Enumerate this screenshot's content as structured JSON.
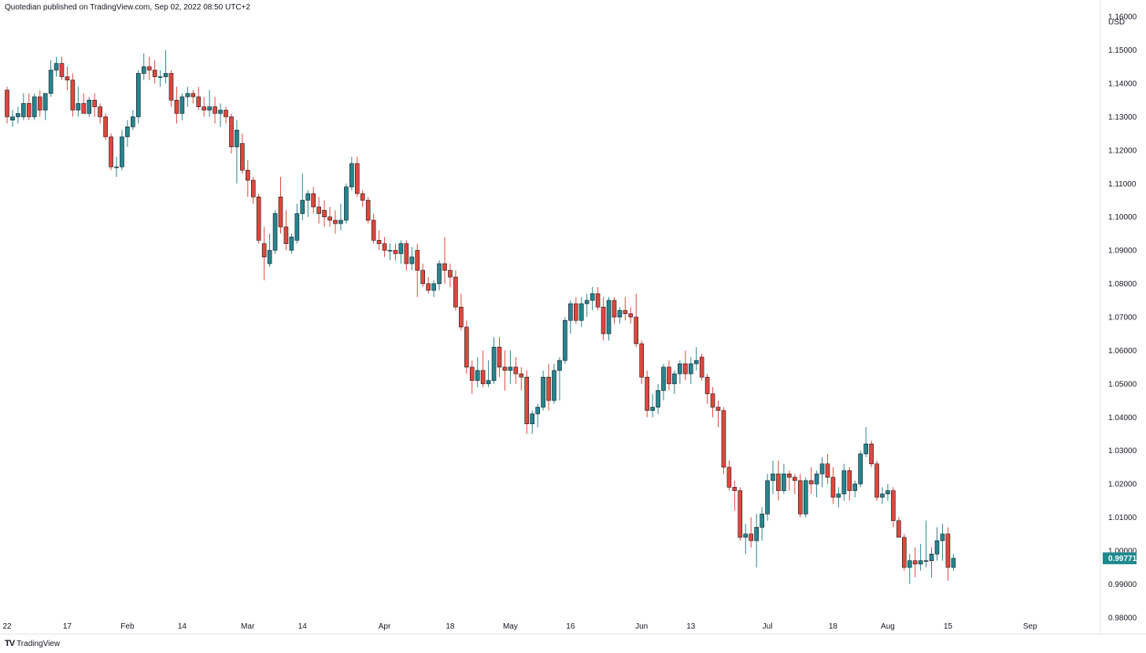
{
  "header": {
    "publisher_line": "Quotedian published on TradingView.com, Sep 02, 2022 08:50 UTC+2"
  },
  "footer": {
    "brand": "TradingView",
    "logo_glyph": "TV"
  },
  "colors": {
    "up": "#26858e",
    "down": "#e0473a",
    "price_tag": "#1d8a8f",
    "axis": "#131722",
    "border": "#e0e3eb"
  },
  "chart_data": {
    "type": "candlestick",
    "currency_label": "USD",
    "ylim": [
      0.975,
      1.165
    ],
    "y_ticks": [
      0.98,
      0.99,
      1.0,
      1.01,
      1.02,
      1.03,
      1.04,
      1.05,
      1.06,
      1.07,
      1.08,
      1.09,
      1.1,
      1.11,
      1.12,
      1.13,
      1.14,
      1.15,
      1.16
    ],
    "y_tick_labels": [
      "0.98000",
      "0.99000",
      "1.00000",
      "1.01000",
      "1.02000",
      "1.03000",
      "1.04000",
      "1.05000",
      "1.06000",
      "1.07000",
      "1.08000",
      "1.09000",
      "1.10000",
      "1.11000",
      "1.12000",
      "1.13000",
      "1.14000",
      "1.15000",
      "1.16000"
    ],
    "x_ticks": [
      {
        "label": "22",
        "index": 0
      },
      {
        "label": "17",
        "index": 11
      },
      {
        "label": "Feb",
        "index": 22
      },
      {
        "label": "14",
        "index": 32
      },
      {
        "label": "Mar",
        "index": 44
      },
      {
        "label": "14",
        "index": 54
      },
      {
        "label": "Apr",
        "index": 69
      },
      {
        "label": "18",
        "index": 81
      },
      {
        "label": "May",
        "index": 92
      },
      {
        "label": "16",
        "index": 103
      },
      {
        "label": "Jun",
        "index": 116
      },
      {
        "label": "13",
        "index": 125
      },
      {
        "label": "Jul",
        "index": 139
      },
      {
        "label": "18",
        "index": 151
      },
      {
        "label": "Aug",
        "index": 161
      },
      {
        "label": "15",
        "index": 172
      },
      {
        "label": "Sep",
        "index": 187
      }
    ],
    "last_price": 0.99771,
    "last_price_label": "0.99771",
    "candles": [
      [
        1.138,
        1.139,
        1.128,
        1.13
      ],
      [
        1.129,
        1.132,
        1.127,
        1.13
      ],
      [
        1.13,
        1.133,
        1.128,
        1.131
      ],
      [
        1.13,
        1.137,
        1.129,
        1.134
      ],
      [
        1.134,
        1.137,
        1.129,
        1.13
      ],
      [
        1.13,
        1.137,
        1.129,
        1.136
      ],
      [
        1.136,
        1.138,
        1.13,
        1.132
      ],
      [
        1.132,
        1.137,
        1.129,
        1.137
      ],
      [
        1.137,
        1.147,
        1.136,
        1.144
      ],
      [
        1.144,
        1.148,
        1.142,
        1.146
      ],
      [
        1.146,
        1.148,
        1.141,
        1.142
      ],
      [
        1.142,
        1.145,
        1.138,
        1.141
      ],
      [
        1.141,
        1.143,
        1.13,
        1.132
      ],
      [
        1.132,
        1.139,
        1.13,
        1.134
      ],
      [
        1.134,
        1.137,
        1.131,
        1.131
      ],
      [
        1.131,
        1.136,
        1.13,
        1.135
      ],
      [
        1.135,
        1.137,
        1.13,
        1.133
      ],
      [
        1.133,
        1.134,
        1.128,
        1.13
      ],
      [
        1.13,
        1.131,
        1.123,
        1.124
      ],
      [
        1.124,
        1.125,
        1.114,
        1.115
      ],
      [
        1.115,
        1.118,
        1.112,
        1.115
      ],
      [
        1.115,
        1.126,
        1.114,
        1.124
      ],
      [
        1.124,
        1.129,
        1.121,
        1.127
      ],
      [
        1.127,
        1.132,
        1.126,
        1.13
      ],
      [
        1.13,
        1.144,
        1.128,
        1.143
      ],
      [
        1.143,
        1.149,
        1.141,
        1.145
      ],
      [
        1.145,
        1.148,
        1.141,
        1.144
      ],
      [
        1.144,
        1.147,
        1.14,
        1.142
      ],
      [
        1.142,
        1.144,
        1.139,
        1.142
      ],
      [
        1.142,
        1.15,
        1.14,
        1.143
      ],
      [
        1.143,
        1.144,
        1.133,
        1.135
      ],
      [
        1.135,
        1.139,
        1.128,
        1.131
      ],
      [
        1.131,
        1.137,
        1.129,
        1.136
      ],
      [
        1.136,
        1.139,
        1.133,
        1.137
      ],
      [
        1.137,
        1.138,
        1.134,
        1.136
      ],
      [
        1.136,
        1.139,
        1.132,
        1.133
      ],
      [
        1.133,
        1.136,
        1.13,
        1.132
      ],
      [
        1.132,
        1.138,
        1.13,
        1.133
      ],
      [
        1.133,
        1.136,
        1.128,
        1.131
      ],
      [
        1.131,
        1.134,
        1.127,
        1.132
      ],
      [
        1.132,
        1.133,
        1.128,
        1.13
      ],
      [
        1.13,
        1.131,
        1.119,
        1.121
      ],
      [
        1.121,
        1.129,
        1.11,
        1.126
      ],
      [
        1.122,
        1.125,
        1.113,
        1.114
      ],
      [
        1.114,
        1.117,
        1.106,
        1.111
      ],
      [
        1.111,
        1.112,
        1.104,
        1.106
      ],
      [
        1.106,
        1.107,
        1.092,
        1.093
      ],
      [
        1.092,
        1.097,
        1.081,
        1.088
      ],
      [
        1.086,
        1.095,
        1.085,
        1.09
      ],
      [
        1.09,
        1.102,
        1.089,
        1.101
      ],
      [
        1.106,
        1.112,
        1.095,
        1.097
      ],
      [
        1.097,
        1.102,
        1.09,
        1.092
      ],
      [
        1.09,
        1.095,
        1.089,
        1.094
      ],
      [
        1.093,
        1.104,
        1.092,
        1.101
      ],
      [
        1.101,
        1.113,
        1.099,
        1.105
      ],
      [
        1.105,
        1.108,
        1.1,
        1.107
      ],
      [
        1.107,
        1.109,
        1.101,
        1.103
      ],
      [
        1.103,
        1.106,
        1.098,
        1.101
      ],
      [
        1.102,
        1.105,
        1.097,
        1.1
      ],
      [
        1.1,
        1.103,
        1.097,
        1.099
      ],
      [
        1.099,
        1.102,
        1.095,
        1.098
      ],
      [
        1.098,
        1.104,
        1.096,
        1.099
      ],
      [
        1.099,
        1.11,
        1.098,
        1.109
      ],
      [
        1.109,
        1.118,
        1.108,
        1.116
      ],
      [
        1.116,
        1.118,
        1.106,
        1.107
      ],
      [
        1.107,
        1.108,
        1.103,
        1.105
      ],
      [
        1.105,
        1.106,
        1.098,
        1.099
      ],
      [
        1.099,
        1.101,
        1.092,
        1.093
      ],
      [
        1.093,
        1.096,
        1.09,
        1.092
      ],
      [
        1.092,
        1.094,
        1.088,
        1.09
      ],
      [
        1.09,
        1.092,
        1.087,
        1.09
      ],
      [
        1.09,
        1.092,
        1.087,
        1.089
      ],
      [
        1.089,
        1.093,
        1.086,
        1.092
      ],
      [
        1.092,
        1.093,
        1.084,
        1.086
      ],
      [
        1.086,
        1.091,
        1.084,
        1.088
      ],
      [
        1.09,
        1.092,
        1.076,
        1.084
      ],
      [
        1.084,
        1.086,
        1.079,
        1.08
      ],
      [
        1.08,
        1.082,
        1.077,
        1.078
      ],
      [
        1.078,
        1.081,
        1.076,
        1.08
      ],
      [
        1.08,
        1.087,
        1.078,
        1.086
      ],
      [
        1.086,
        1.094,
        1.08,
        1.084
      ],
      [
        1.084,
        1.086,
        1.079,
        1.082
      ],
      [
        1.082,
        1.084,
        1.072,
        1.073
      ],
      [
        1.073,
        1.077,
        1.066,
        1.067
      ],
      [
        1.067,
        1.069,
        1.053,
        1.055
      ],
      [
        1.055,
        1.057,
        1.047,
        1.051
      ],
      [
        1.051,
        1.058,
        1.049,
        1.054
      ],
      [
        1.054,
        1.06,
        1.049,
        1.05
      ],
      [
        1.05,
        1.057,
        1.049,
        1.051
      ],
      [
        1.051,
        1.064,
        1.05,
        1.061
      ],
      [
        1.061,
        1.064,
        1.052,
        1.055
      ],
      [
        1.055,
        1.06,
        1.048,
        1.054
      ],
      [
        1.054,
        1.06,
        1.05,
        1.055
      ],
      [
        1.055,
        1.058,
        1.05,
        1.053
      ],
      [
        1.053,
        1.055,
        1.048,
        1.052
      ],
      [
        1.052,
        1.054,
        1.035,
        1.038
      ],
      [
        1.038,
        1.042,
        1.035,
        1.041
      ],
      [
        1.041,
        1.044,
        1.037,
        1.043
      ],
      [
        1.043,
        1.054,
        1.042,
        1.052
      ],
      [
        1.052,
        1.056,
        1.042,
        1.045
      ],
      [
        1.045,
        1.056,
        1.044,
        1.054
      ],
      [
        1.054,
        1.058,
        1.045,
        1.057
      ],
      [
        1.057,
        1.07,
        1.056,
        1.069
      ],
      [
        1.069,
        1.075,
        1.065,
        1.074
      ],
      [
        1.074,
        1.076,
        1.068,
        1.069
      ],
      [
        1.069,
        1.076,
        1.067,
        1.074
      ],
      [
        1.074,
        1.077,
        1.07,
        1.075
      ],
      [
        1.075,
        1.079,
        1.072,
        1.077
      ],
      [
        1.077,
        1.079,
        1.072,
        1.073
      ],
      [
        1.073,
        1.076,
        1.063,
        1.065
      ],
      [
        1.065,
        1.076,
        1.063,
        1.075
      ],
      [
        1.075,
        1.076,
        1.068,
        1.07
      ],
      [
        1.07,
        1.073,
        1.068,
        1.072
      ],
      [
        1.072,
        1.076,
        1.069,
        1.071
      ],
      [
        1.071,
        1.073,
        1.068,
        1.07
      ],
      [
        1.07,
        1.077,
        1.061,
        1.062
      ],
      [
        1.062,
        1.063,
        1.05,
        1.052
      ],
      [
        1.052,
        1.054,
        1.04,
        1.042
      ],
      [
        1.042,
        1.047,
        1.04,
        1.043
      ],
      [
        1.043,
        1.05,
        1.041,
        1.048
      ],
      [
        1.048,
        1.056,
        1.045,
        1.055
      ],
      [
        1.055,
        1.057,
        1.048,
        1.05
      ],
      [
        1.05,
        1.054,
        1.047,
        1.053
      ],
      [
        1.053,
        1.057,
        1.05,
        1.056
      ],
      [
        1.056,
        1.06,
        1.051,
        1.053
      ],
      [
        1.053,
        1.058,
        1.05,
        1.056
      ],
      [
        1.056,
        1.061,
        1.054,
        1.057
      ],
      [
        1.058,
        1.059,
        1.051,
        1.052
      ],
      [
        1.052,
        1.053,
        1.044,
        1.047
      ],
      [
        1.047,
        1.049,
        1.04,
        1.043
      ],
      [
        1.043,
        1.045,
        1.037,
        1.042
      ],
      [
        1.042,
        1.043,
        1.023,
        1.025
      ],
      [
        1.025,
        1.027,
        1.018,
        1.019
      ],
      [
        1.019,
        1.021,
        1.012,
        1.018
      ],
      [
        1.018,
        1.019,
        1.003,
        1.004
      ],
      [
        1.004,
        1.008,
        0.999,
        1.005
      ],
      [
        1.005,
        1.01,
        1.001,
        1.003
      ],
      [
        1.003,
        1.011,
        0.995,
        1.007
      ],
      [
        1.007,
        1.013,
        1.003,
        1.011
      ],
      [
        1.011,
        1.023,
        1.009,
        1.021
      ],
      [
        1.021,
        1.027,
        1.017,
        1.023
      ],
      [
        1.023,
        1.027,
        1.015,
        1.018
      ],
      [
        1.018,
        1.026,
        1.017,
        1.023
      ],
      [
        1.023,
        1.024,
        1.018,
        1.022
      ],
      [
        1.022,
        1.023,
        1.017,
        1.021
      ],
      [
        1.021,
        1.023,
        1.01,
        1.011
      ],
      [
        1.011,
        1.022,
        1.01,
        1.021
      ],
      [
        1.021,
        1.025,
        1.017,
        1.02
      ],
      [
        1.02,
        1.024,
        1.016,
        1.023
      ],
      [
        1.023,
        1.028,
        1.019,
        1.026
      ],
      [
        1.026,
        1.029,
        1.02,
        1.022
      ],
      [
        1.022,
        1.025,
        1.014,
        1.016
      ],
      [
        1.016,
        1.019,
        1.013,
        1.017
      ],
      [
        1.017,
        1.026,
        1.015,
        1.024
      ],
      [
        1.024,
        1.025,
        1.015,
        1.018
      ],
      [
        1.018,
        1.021,
        1.016,
        1.02
      ],
      [
        1.02,
        1.03,
        1.019,
        1.029
      ],
      [
        1.029,
        1.037,
        1.028,
        1.032
      ],
      [
        1.032,
        1.033,
        1.025,
        1.026
      ],
      [
        1.026,
        1.027,
        1.015,
        1.016
      ],
      [
        1.016,
        1.019,
        1.014,
        1.017
      ],
      [
        1.017,
        1.02,
        1.015,
        1.018
      ],
      [
        1.018,
        1.019,
        1.007,
        1.009
      ],
      [
        1.009,
        1.01,
        1.004,
        1.004
      ],
      [
        1.004,
        1.005,
        0.994,
        0.995
      ],
      [
        0.995,
        0.999,
        0.99,
        0.997
      ],
      [
        0.997,
        1.001,
        0.992,
        0.996
      ],
      [
        0.996,
        1.002,
        0.994,
        0.997
      ],
      [
        0.997,
        1.009,
        0.995,
        0.997
      ],
      [
        0.997,
        1.001,
        0.992,
        0.999
      ],
      [
        0.999,
        1.007,
        0.997,
        1.003
      ],
      [
        1.003,
        1.008,
        0.997,
        1.005
      ],
      [
        1.005,
        1.007,
        0.991,
        0.995
      ],
      [
        0.995,
        0.999,
        0.994,
        0.99771
      ]
    ]
  }
}
